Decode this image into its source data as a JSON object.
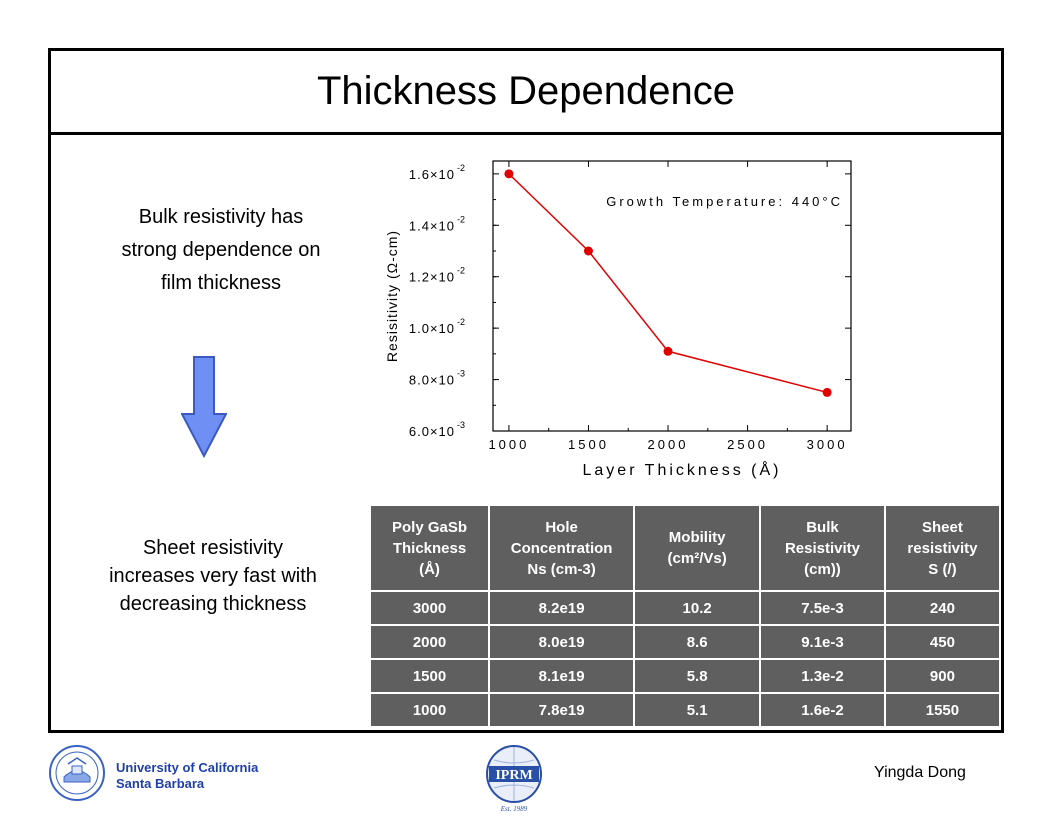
{
  "slide": {
    "title": "Thickness Dependence",
    "bulk_text": [
      "Bulk resistivity has",
      "strong dependence on",
      "film thickness"
    ],
    "sheet_text": [
      "Sheet resistivity",
      "increases very fast with",
      "decreasing thickness"
    ]
  },
  "chart_data": {
    "type": "line",
    "annotation": "Growth Temperature: 440°C",
    "xlabel": "Layer Thickness (Å)",
    "ylabel": "Resisitivity (Ω-cm)",
    "x_categories": [
      "1000",
      "1500",
      "2000",
      "2500",
      "3000"
    ],
    "x": [
      1000,
      1500,
      2000,
      3000
    ],
    "y": [
      0.016,
      0.013,
      0.0091,
      0.0075
    ],
    "ylim": [
      0.006,
      0.0165
    ],
    "yticks": [
      {
        "value": 0.016,
        "mant": "1.6",
        "exp": "-2"
      },
      {
        "value": 0.014,
        "mant": "1.4",
        "exp": "-2"
      },
      {
        "value": 0.012,
        "mant": "1.2",
        "exp": "-2"
      },
      {
        "value": 0.01,
        "mant": "1.0",
        "exp": "-2"
      },
      {
        "value": 0.008,
        "mant": "8.0",
        "exp": "-3"
      },
      {
        "value": 0.006,
        "mant": "6.0",
        "exp": "-3"
      }
    ],
    "line_color": "#e00000",
    "marker_color": "#e00000"
  },
  "table": {
    "headers": [
      "Poly GaSb\nThickness\n(Å)",
      "Hole\nConcentration\nNs (cm-3)",
      "Mobility\n (cm²/Vs)",
      "Bulk\nResistivity\n (cm))",
      "Sheet\nresistivity\nS (/)"
    ],
    "rows": [
      [
        "3000",
        "8.2e19",
        "10.2",
        "7.5e-3",
        "240"
      ],
      [
        "2000",
        "8.0e19",
        "8.6",
        "9.1e-3",
        "450"
      ],
      [
        "1500",
        "8.1e19",
        "5.8",
        "1.3e-2",
        "900"
      ],
      [
        "1000",
        "7.8e19",
        "5.1",
        "1.6e-2",
        "1550"
      ]
    ]
  },
  "footer": {
    "ucsb_line1": "University of California",
    "ucsb_line2": "Santa Barbara",
    "author": "Yingda Dong",
    "iprm_label": "IPRM",
    "iprm_est": "Est. 1989"
  },
  "colors": {
    "table_bg": "#5f5f5f",
    "arrow_fill": "#6f8ff5",
    "ucsb_blue": "#1f3faa",
    "iprm_blue": "#2a4fa6"
  }
}
